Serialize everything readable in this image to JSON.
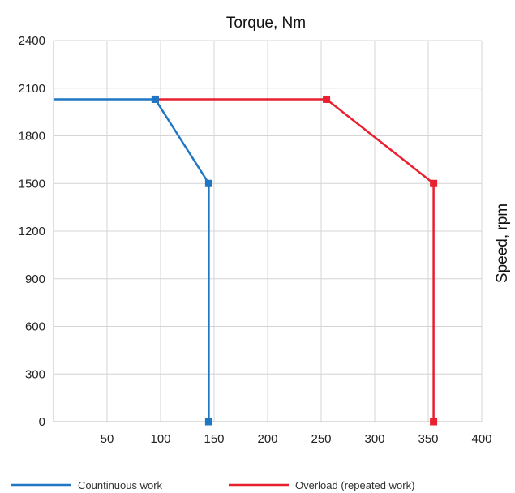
{
  "chart_data": {
    "type": "line",
    "title": "Torque, Nm",
    "xlabel": "",
    "ylabel": "Speed, rpm",
    "xlim": [
      0,
      400
    ],
    "ylim": [
      0,
      2400
    ],
    "x_ticks": [
      50,
      100,
      150,
      200,
      250,
      300,
      350,
      400
    ],
    "x_tick_labels": [
      "50",
      "100",
      "150",
      "200",
      "250",
      "300",
      "350",
      "400"
    ],
    "y_ticks": [
      0,
      300,
      600,
      900,
      1200,
      1500,
      1800,
      2100,
      2400
    ],
    "y_tick_labels": [
      "0",
      "300",
      "600",
      "900",
      "1200",
      "1500",
      "1800",
      "2100",
      "2400"
    ],
    "grid": true,
    "legend_position": "bottom",
    "series": [
      {
        "name": "Countinuous work",
        "color": "#1f77c4",
        "points": [
          [
            0,
            2030
          ],
          [
            95,
            2030
          ],
          [
            145,
            1500
          ],
          [
            145,
            0
          ]
        ]
      },
      {
        "name": "Overload (repeated work)",
        "color": "#e8202f",
        "points": [
          [
            95,
            2030
          ],
          [
            255,
            2030
          ],
          [
            355,
            1500
          ],
          [
            355,
            0
          ]
        ]
      }
    ]
  }
}
